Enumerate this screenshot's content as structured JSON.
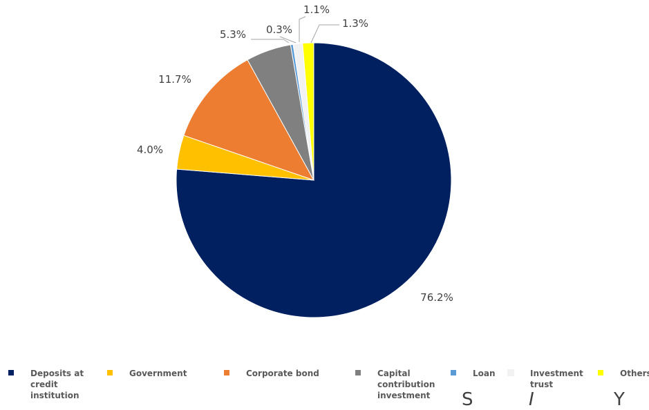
{
  "chart_data": {
    "type": "pie",
    "title": "",
    "slices": [
      {
        "name": "Deposits at credit institution",
        "value": 76.2,
        "label": "76.2%",
        "color": "#002060"
      },
      {
        "name": "Government",
        "value": 4.0,
        "label": "4.0%",
        "color": "#FFC000"
      },
      {
        "name": "Corporate bond",
        "value": 11.7,
        "label": "11.7%",
        "color": "#ED7D31"
      },
      {
        "name": "Capital contribution investment",
        "value": 5.3,
        "label": "5.3%",
        "color": "#808080"
      },
      {
        "name": "Loan",
        "value": 0.3,
        "label": "0.3%",
        "color": "#5B9BD5"
      },
      {
        "name": "Investment trust",
        "value": 1.1,
        "label": "1.1%",
        "color": "#F2F2F2"
      },
      {
        "name": "Others",
        "value": 1.3,
        "label": "1.3%",
        "color": "#FFFF00"
      }
    ],
    "legend": {
      "placement": "bottom",
      "items": [
        {
          "label": "Deposits at credit institution",
          "color": "#002060"
        },
        {
          "label": "Government",
          "color": "#FFC000"
        },
        {
          "label": "Corporate bond",
          "color": "#ED7D31"
        },
        {
          "label": "Capital contribution investment",
          "color": "#808080"
        },
        {
          "label": "Loan",
          "color": "#5B9BD5"
        },
        {
          "label": "Investment trust",
          "color": "#F2F2F2"
        },
        {
          "label": "Others",
          "color": "#FFFF00"
        }
      ]
    }
  },
  "cutoff_text": {
    "left": "S",
    "mid": "I",
    "right": "Y"
  }
}
